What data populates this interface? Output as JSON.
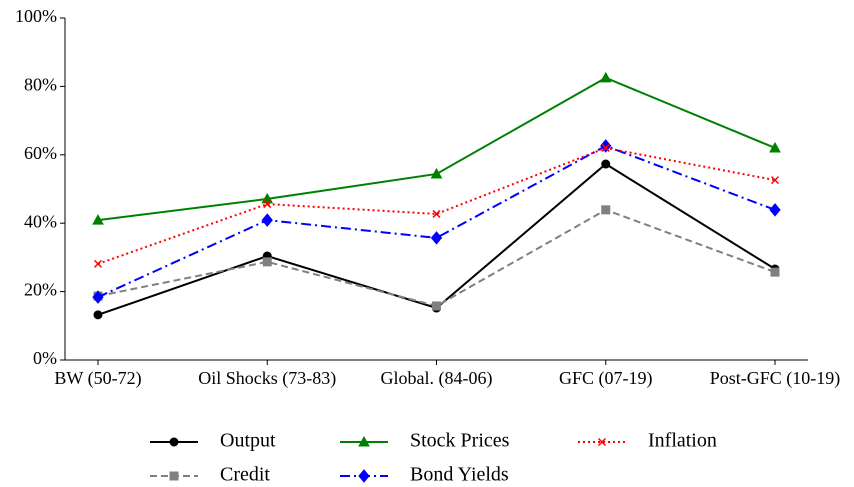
{
  "chart_data": {
    "type": "line",
    "categories": [
      "BW (50-72)",
      "Oil Shocks (73-83)",
      "Global. (84-06)",
      "GFC (07-19)",
      "Post-GFC (10-19)"
    ],
    "series": [
      {
        "name": "Output",
        "color": "#000000",
        "marker": "circle",
        "dash": "solid",
        "values": [
          13.2,
          30.4,
          15.2,
          57.3,
          26.6
        ]
      },
      {
        "name": "Credit",
        "color": "#808080",
        "marker": "square",
        "dash": "dashed",
        "values": [
          18.7,
          28.7,
          15.8,
          43.9,
          25.7
        ]
      },
      {
        "name": "Stock Prices",
        "color": "#008000",
        "marker": "triangle",
        "dash": "solid",
        "values": [
          40.9,
          47.1,
          54.4,
          82.5,
          62.0
        ]
      },
      {
        "name": "Bond Yields",
        "color": "#0000ff",
        "marker": "diamond",
        "dash": "dashdot",
        "values": [
          18.4,
          40.9,
          35.7,
          62.6,
          43.9
        ]
      },
      {
        "name": "Inflation",
        "color": "#ff0000",
        "marker": "x",
        "dash": "dotted",
        "values": [
          28.1,
          45.6,
          42.7,
          62.0,
          52.6
        ]
      }
    ],
    "ylim": [
      0,
      100
    ],
    "yticks": [
      {
        "value": 0,
        "label": "0%"
      },
      {
        "value": 20,
        "label": "20%"
      },
      {
        "value": 40,
        "label": "40%"
      },
      {
        "value": 60,
        "label": "60%"
      },
      {
        "value": 80,
        "label": "80%"
      },
      {
        "value": 100,
        "label": "100%"
      }
    ],
    "grid": false,
    "legend": "bottom"
  }
}
